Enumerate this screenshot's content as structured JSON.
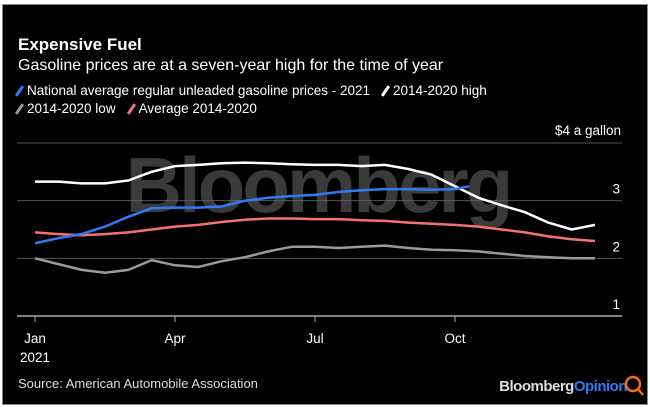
{
  "title": "Expensive Fuel",
  "subtitle": "Gasoline prices are at a seven-year high for the time of year",
  "unit_label": "$4 a gallon",
  "source": "Source: American Automobile Association",
  "logo": {
    "brand": "Bloomberg",
    "suffix": "Opinion",
    "watermark": "Bloomberg"
  },
  "chart_data": {
    "type": "line",
    "title": "Expensive Fuel",
    "xlabel": "",
    "ylabel": "$ a gallon",
    "x_unit": "months since Jan 1, 2021",
    "xlim": [
      0,
      12
    ],
    "ylim": [
      1,
      4
    ],
    "x_ticks": [
      {
        "v": 0,
        "label": "Jan",
        "sub": "2021"
      },
      {
        "v": 3,
        "label": "Apr",
        "sub": ""
      },
      {
        "v": 6,
        "label": "Jul",
        "sub": ""
      },
      {
        "v": 9,
        "label": "Oct",
        "sub": ""
      }
    ],
    "y_ticks": [
      {
        "v": 4,
        "label": ""
      },
      {
        "v": 3,
        "label": "3"
      },
      {
        "v": 2,
        "label": "2"
      },
      {
        "v": 1,
        "label": "1"
      }
    ],
    "grid": true,
    "legend": "top-left",
    "series": [
      {
        "name": "National average regular unleaded gasoline prices - 2021",
        "color": "#2f7bf5",
        "x": [
          0,
          0.5,
          1,
          1.5,
          2,
          2.5,
          3,
          3.5,
          4,
          4.5,
          5,
          5.5,
          6,
          6.5,
          7,
          7.5,
          8,
          8.5,
          9,
          9.3
        ],
        "y": [
          2.26,
          2.35,
          2.42,
          2.55,
          2.72,
          2.87,
          2.88,
          2.88,
          2.9,
          3.0,
          3.05,
          3.08,
          3.1,
          3.15,
          3.18,
          3.2,
          3.2,
          3.19,
          3.2,
          3.25
        ]
      },
      {
        "name": "2014-2020 high",
        "color": "#ffffff",
        "x": [
          0,
          0.5,
          1,
          1.5,
          2,
          2.5,
          3,
          3.5,
          4,
          4.5,
          5,
          5.5,
          6,
          6.5,
          7,
          7.5,
          8,
          8.5,
          9,
          9.5,
          10,
          10.5,
          11,
          11.5,
          12
        ],
        "y": [
          3.33,
          3.33,
          3.3,
          3.3,
          3.35,
          3.5,
          3.6,
          3.62,
          3.65,
          3.66,
          3.65,
          3.63,
          3.62,
          3.62,
          3.6,
          3.62,
          3.55,
          3.45,
          3.25,
          3.05,
          2.92,
          2.8,
          2.62,
          2.5,
          2.58
        ]
      },
      {
        "name": "2014-2020 low",
        "color": "#9a9a9a",
        "x": [
          0,
          0.5,
          1,
          1.5,
          2,
          2.5,
          3,
          3.5,
          4,
          4.5,
          5,
          5.5,
          6,
          6.5,
          7,
          7.5,
          8,
          8.5,
          9,
          9.5,
          10,
          10.5,
          11,
          11.5,
          12
        ],
        "y": [
          2.0,
          1.9,
          1.8,
          1.75,
          1.8,
          1.97,
          1.88,
          1.85,
          1.95,
          2.02,
          2.12,
          2.2,
          2.2,
          2.18,
          2.2,
          2.22,
          2.18,
          2.15,
          2.14,
          2.12,
          2.08,
          2.04,
          2.02,
          2.0,
          2.0
        ]
      },
      {
        "name": "Average 2014-2020",
        "color": "#f47272",
        "x": [
          0,
          0.5,
          1,
          1.5,
          2,
          2.5,
          3,
          3.5,
          4,
          4.5,
          5,
          5.5,
          6,
          6.5,
          7,
          7.5,
          8,
          8.5,
          9,
          9.5,
          10,
          10.5,
          11,
          11.5,
          12
        ],
        "y": [
          2.45,
          2.42,
          2.4,
          2.42,
          2.45,
          2.5,
          2.55,
          2.58,
          2.63,
          2.67,
          2.69,
          2.69,
          2.68,
          2.68,
          2.66,
          2.65,
          2.62,
          2.6,
          2.58,
          2.55,
          2.5,
          2.45,
          2.38,
          2.33,
          2.3
        ]
      }
    ]
  }
}
